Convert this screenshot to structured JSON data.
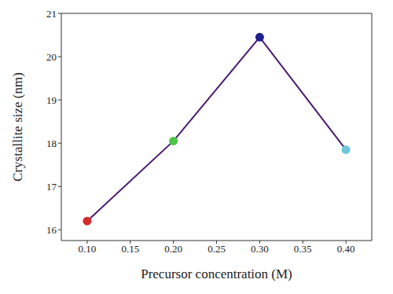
{
  "chart_data": {
    "type": "line",
    "x_label": "Precursor concentration (M)",
    "y_label": "Crystallite size (nm)",
    "x": [
      0.1,
      0.2,
      0.3,
      0.4
    ],
    "values": [
      16.2,
      18.05,
      20.45,
      17.85
    ],
    "color": "#4b1a6e",
    "colors": [
      "#d42a2a",
      "#4cc44c",
      "#1f1f8f",
      "#6cc8d8"
    ],
    "marker": "circle",
    "xlim": [
      0.07,
      0.43
    ],
    "ylim": [
      15.75,
      21
    ],
    "xticks": [
      {
        "value": 0.1,
        "label": "0.10"
      },
      {
        "value": 0.15,
        "label": "0.15"
      },
      {
        "value": 0.2,
        "label": "0.20"
      },
      {
        "value": 0.25,
        "label": "0.25"
      },
      {
        "value": 0.3,
        "label": "0.30"
      },
      {
        "value": 0.35,
        "label": "0.35"
      },
      {
        "value": 0.4,
        "label": "0.40"
      }
    ],
    "yticks": [
      16,
      17,
      18,
      19,
      20,
      21
    ],
    "grid": false
  }
}
